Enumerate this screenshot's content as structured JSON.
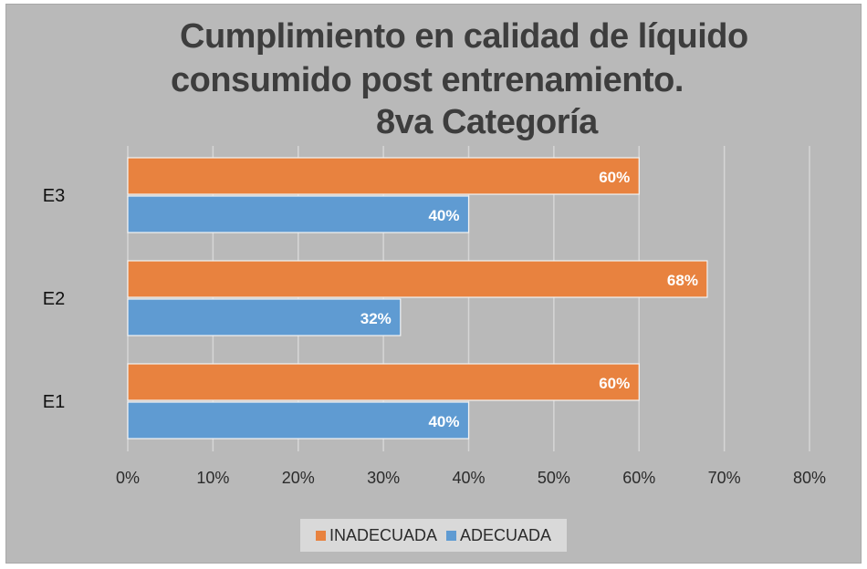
{
  "chart_data": {
    "type": "bar",
    "orientation": "horizontal",
    "title_lines": [
      "Cumplimiento en calidad de líquido",
      "consumido post entrenamiento.",
      "8va Categoría"
    ],
    "categories": [
      "E3",
      "E2",
      "E1"
    ],
    "series": [
      {
        "name": "INADECUADA",
        "color": "#e8823f",
        "values": [
          60,
          68,
          60
        ],
        "labels": [
          "60%",
          "68%",
          "60%"
        ]
      },
      {
        "name": "ADECUADA",
        "color": "#5f9bd2",
        "values": [
          40,
          32,
          40
        ],
        "labels": [
          "40%",
          "32%",
          "40%"
        ]
      }
    ],
    "xlim": [
      0,
      80
    ],
    "xticks": [
      "0%",
      "10%",
      "20%",
      "30%",
      "40%",
      "50%",
      "60%",
      "70%",
      "80%"
    ],
    "grid": true,
    "legend_position": "bottom"
  }
}
